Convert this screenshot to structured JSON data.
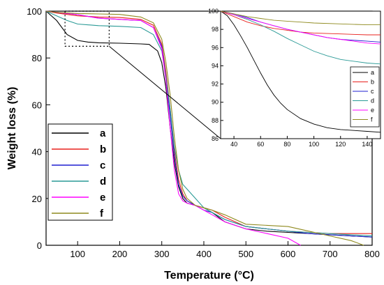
{
  "chart_data": [
    {
      "type": "line",
      "role": "main",
      "title": "",
      "xlabel": "Temperature (°C)",
      "ylabel": "Weight loss (%)",
      "xlim": [
        25,
        800
      ],
      "ylim": [
        0,
        100
      ],
      "x_ticks": [
        100,
        200,
        300,
        400,
        500,
        600,
        700,
        800
      ],
      "y_ticks": [
        0,
        20,
        40,
        60,
        80,
        100
      ],
      "legend_position": "lower-left",
      "series": [
        {
          "name": "a",
          "color": "#000000",
          "x": [
            25,
            50,
            75,
            100,
            125,
            150,
            200,
            250,
            270,
            290,
            300,
            310,
            320,
            330,
            340,
            350,
            360,
            380,
            400,
            420,
            450,
            500,
            550,
            600,
            650,
            700,
            750,
            800
          ],
          "y": [
            100,
            96,
            90,
            87.5,
            86.8,
            86.5,
            86.3,
            86.0,
            85.8,
            83,
            78,
            67,
            50,
            35,
            25,
            20,
            18,
            17,
            16,
            14,
            10,
            7,
            6,
            5.5,
            5,
            4.5,
            4,
            3.5
          ]
        },
        {
          "name": "b",
          "color": "#e8201c",
          "x": [
            25,
            50,
            100,
            150,
            200,
            250,
            280,
            300,
            310,
            320,
            330,
            340,
            350,
            360,
            380,
            400,
            420,
            450,
            500,
            550,
            600,
            650,
            700,
            750,
            800
          ],
          "y": [
            100,
            99.2,
            98,
            97.5,
            97.3,
            96.5,
            94,
            86,
            74,
            58,
            40,
            28,
            22,
            19,
            17,
            16,
            15,
            12,
            8,
            7,
            6,
            5.5,
            5,
            5,
            5
          ]
        },
        {
          "name": "c",
          "color": "#1f1fd0",
          "x": [
            25,
            50,
            100,
            150,
            200,
            250,
            280,
            300,
            310,
            320,
            330,
            340,
            350,
            360,
            380,
            400,
            420,
            450,
            500,
            550,
            600,
            650,
            700,
            750,
            800
          ],
          "y": [
            100,
            99.5,
            98.5,
            97,
            96.5,
            96,
            93,
            85,
            72,
            55,
            38,
            26,
            21,
            19,
            17,
            15,
            14,
            11,
            8,
            7,
            6,
            5,
            4.5,
            4,
            3.5
          ]
        },
        {
          "name": "d",
          "color": "#2a9a96",
          "x": [
            25,
            50,
            75,
            100,
            150,
            200,
            250,
            280,
            300,
            310,
            320,
            330,
            340,
            350,
            360,
            380,
            400,
            420,
            450,
            500,
            550,
            600,
            650,
            700,
            750,
            800
          ],
          "y": [
            100,
            98,
            96,
            94.5,
            93.8,
            93.5,
            93,
            90,
            83,
            72,
            58,
            42,
            32,
            26,
            24,
            20,
            16,
            14,
            11,
            8,
            7,
            6,
            5.5,
            5,
            4.5,
            4
          ]
        },
        {
          "name": "e",
          "color": "#ff00ff",
          "x": [
            25,
            50,
            100,
            150,
            200,
            250,
            280,
            300,
            310,
            320,
            330,
            340,
            350,
            360,
            380,
            400,
            420,
            450,
            500,
            550,
            600,
            620,
            630
          ],
          "y": [
            100,
            99.5,
            98.5,
            97,
            96.5,
            96,
            93,
            84,
            70,
            50,
            32,
            22,
            19,
            18,
            17,
            15,
            13,
            10,
            7,
            5,
            3,
            1,
            0
          ]
        },
        {
          "name": "f",
          "color": "#8f8a1e",
          "x": [
            25,
            50,
            100,
            150,
            200,
            250,
            280,
            300,
            310,
            320,
            330,
            340,
            350,
            360,
            380,
            400,
            420,
            450,
            500,
            550,
            600,
            650,
            700,
            750,
            780
          ],
          "y": [
            100,
            99.5,
            99,
            98.8,
            98.6,
            97.5,
            95,
            88,
            78,
            64,
            46,
            32,
            24,
            20,
            17,
            16,
            15,
            13,
            9,
            8.5,
            8,
            6,
            4,
            2,
            0
          ]
        }
      ]
    },
    {
      "type": "line",
      "role": "inset",
      "title": "",
      "xlabel": "",
      "ylabel": "",
      "xlim": [
        30,
        150
      ],
      "ylim": [
        86,
        100
      ],
      "x_ticks": [
        40,
        60,
        80,
        100,
        120,
        140
      ],
      "y_ticks": [
        86,
        88,
        90,
        92,
        94,
        96,
        98,
        100
      ],
      "legend_position": "lower-right",
      "series": [
        {
          "name": "a",
          "color": "#000000",
          "x": [
            30,
            35,
            40,
            45,
            50,
            55,
            60,
            65,
            70,
            75,
            80,
            90,
            100,
            110,
            120,
            130,
            140,
            150
          ],
          "y": [
            100,
            99.5,
            98.5,
            97.3,
            96,
            94.6,
            93.2,
            91.9,
            90.8,
            89.9,
            89.2,
            88.2,
            87.6,
            87.2,
            87.0,
            86.9,
            86.8,
            86.7
          ]
        },
        {
          "name": "b",
          "color": "#e8201c",
          "x": [
            30,
            40,
            50,
            60,
            70,
            80,
            90,
            100,
            120,
            140,
            150
          ],
          "y": [
            100,
            99.4,
            98.8,
            98.4,
            98.1,
            97.9,
            97.7,
            97.6,
            97.5,
            97.4,
            97.4
          ]
        },
        {
          "name": "c",
          "color": "#1f1fd0",
          "x": [
            30,
            40,
            50,
            60,
            70,
            80,
            90,
            100,
            110,
            120,
            130,
            140,
            150
          ],
          "y": [
            100,
            99.7,
            99.3,
            98.8,
            98.4,
            98.0,
            97.7,
            97.4,
            97.1,
            96.9,
            96.8,
            96.7,
            96.6
          ]
        },
        {
          "name": "d",
          "color": "#2a9a96",
          "x": [
            30,
            40,
            50,
            60,
            70,
            80,
            90,
            100,
            110,
            120,
            130,
            140,
            150
          ],
          "y": [
            100,
            99.6,
            99.1,
            98.5,
            97.8,
            97.0,
            96.3,
            95.6,
            95.1,
            94.7,
            94.5,
            94.3,
            94.2
          ]
        },
        {
          "name": "e",
          "color": "#ff00ff",
          "x": [
            30,
            40,
            50,
            60,
            70,
            80,
            90,
            100,
            110,
            120,
            130,
            140,
            150
          ],
          "y": [
            100,
            99.6,
            99.2,
            98.8,
            98.4,
            98.0,
            97.7,
            97.4,
            97.1,
            96.9,
            96.7,
            96.5,
            96.4
          ]
        },
        {
          "name": "f",
          "color": "#8f8a1e",
          "x": [
            30,
            40,
            50,
            60,
            70,
            80,
            90,
            100,
            120,
            140,
            150
          ],
          "y": [
            100,
            99.7,
            99.4,
            99.2,
            99.0,
            98.9,
            98.8,
            98.7,
            98.6,
            98.5,
            98.5
          ]
        }
      ]
    }
  ]
}
